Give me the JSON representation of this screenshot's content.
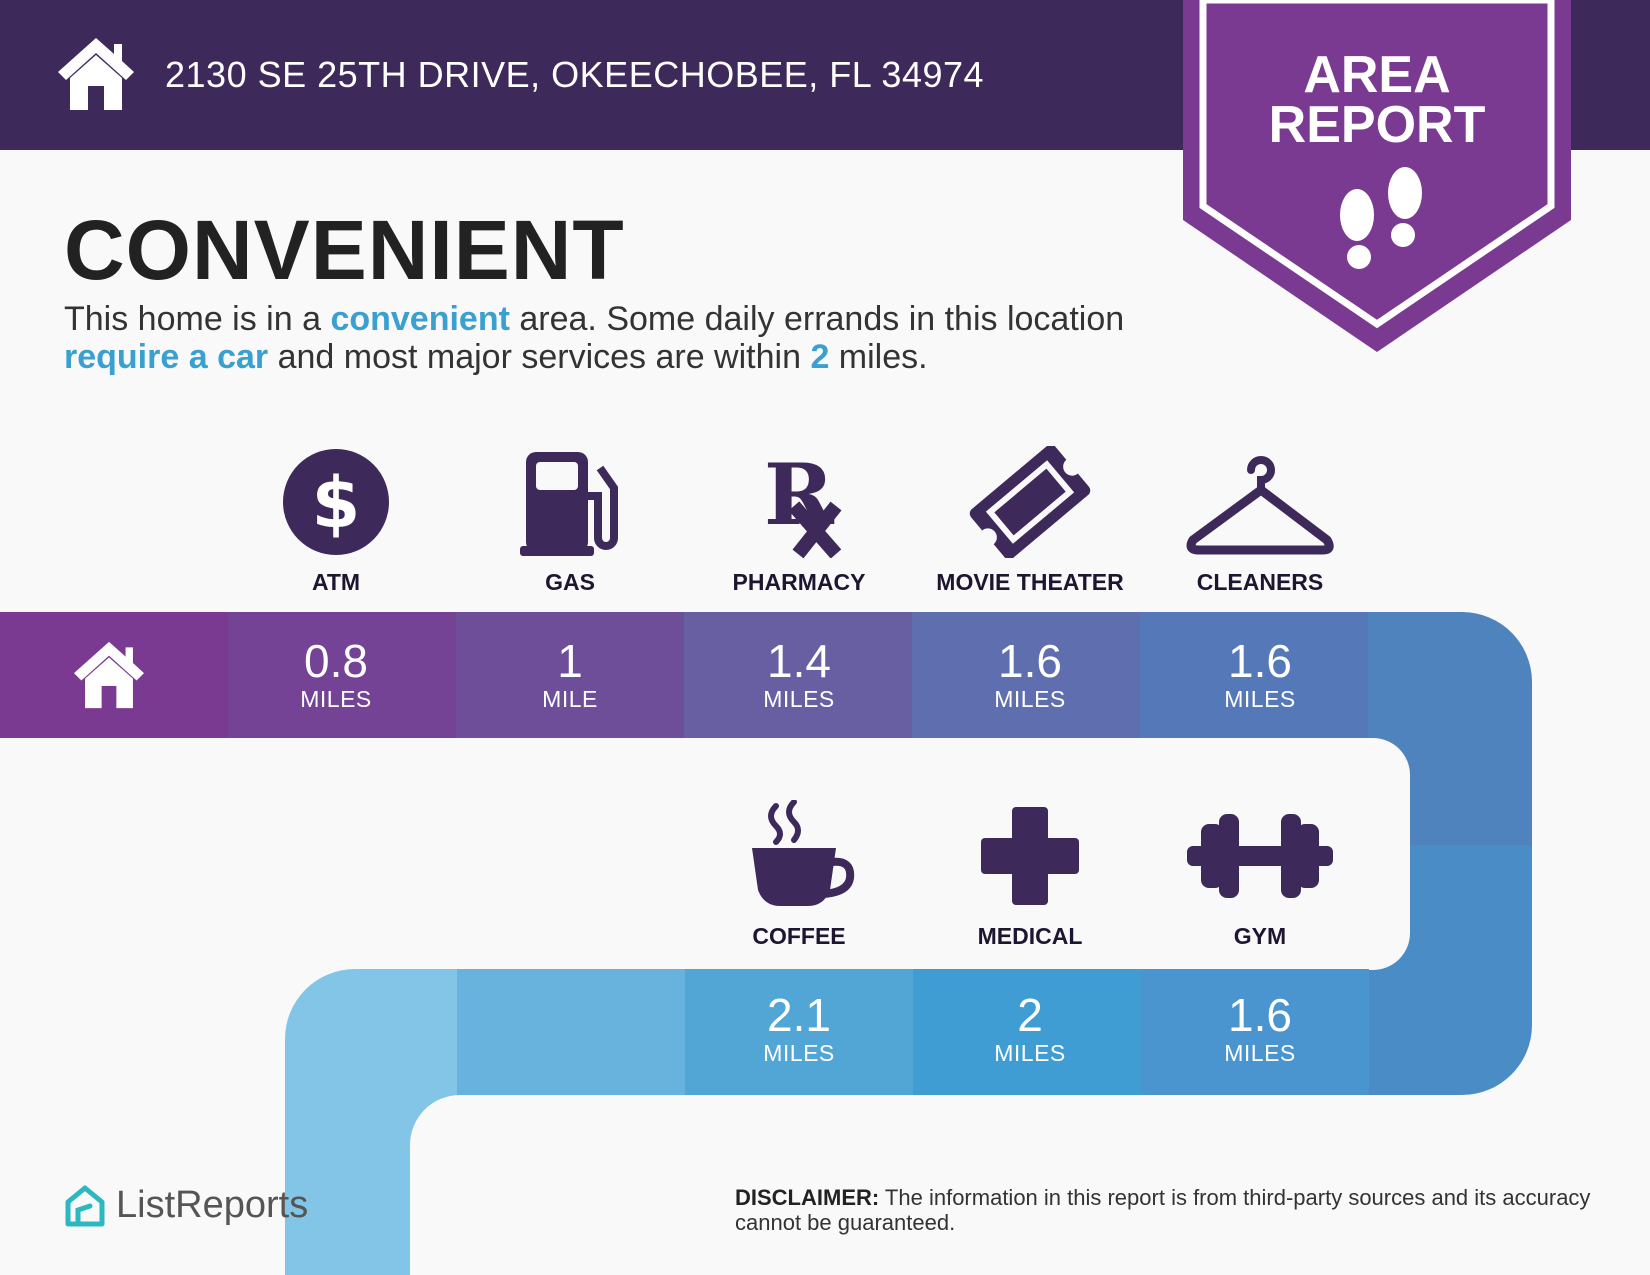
{
  "header": {
    "address": "2130 SE 25TH DRIVE, OKEECHOBEE, FL 34974",
    "icon": "home-icon"
  },
  "badge": {
    "line1": "AREA",
    "line2": "REPORT",
    "icon": "footprints-icon",
    "color": "#7b3a91"
  },
  "headline": "CONVENIENT",
  "description": {
    "part1": "This home is in a ",
    "hl1": "convenient",
    "part2": " area. Some daily errands in this location ",
    "hl2": "require a car",
    "part3": " and most major services are within ",
    "hl3": "2",
    "part4": " miles."
  },
  "amenities_top": [
    {
      "label": "ATM",
      "distance": "0.8",
      "unit": "MILES",
      "icon": "dollar-icon"
    },
    {
      "label": "GAS",
      "distance": "1",
      "unit": "MILE",
      "icon": "gas-pump-icon"
    },
    {
      "label": "PHARMACY",
      "distance": "1.4",
      "unit": "MILES",
      "icon": "rx-icon"
    },
    {
      "label": "MOVIE THEATER",
      "distance": "1.6",
      "unit": "MILES",
      "icon": "ticket-icon"
    },
    {
      "label": "CLEANERS",
      "distance": "1.6",
      "unit": "MILES",
      "icon": "hanger-icon"
    }
  ],
  "amenities_bottom": [
    {
      "label": "COFFEE",
      "distance": "2.1",
      "unit": "MILES",
      "icon": "coffee-icon"
    },
    {
      "label": "MEDICAL",
      "distance": "2",
      "unit": "MILES",
      "icon": "medical-cross-icon"
    },
    {
      "label": "GYM",
      "distance": "1.6",
      "unit": "MILES",
      "icon": "dumbbell-icon"
    }
  ],
  "brand": {
    "name": "ListReports",
    "icon": "listreports-logo-icon"
  },
  "disclaimer": {
    "label": "DISCLAIMER:",
    "text": " The information in this report is from third-party sources and its accuracy cannot be guaranteed."
  },
  "colors": {
    "header": "#3d2a5a",
    "icon": "#3d2a5a",
    "highlight": "#3aa0d0"
  }
}
